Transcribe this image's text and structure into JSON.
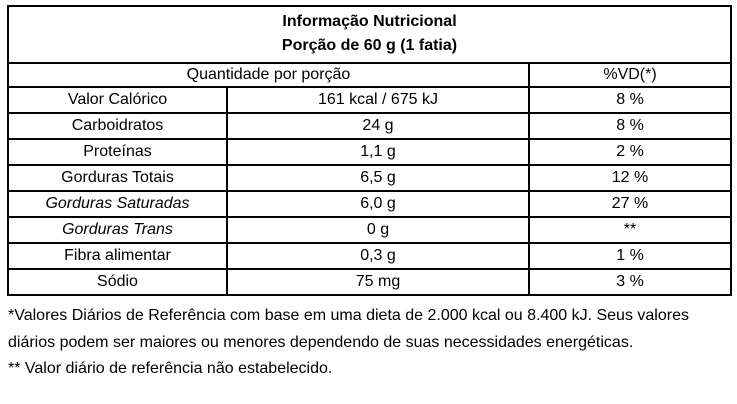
{
  "label": {
    "title": "Informação Nutricional",
    "serving": "Porção de 60 g (1 fatia)"
  },
  "columns": {
    "quantity_header": "Quantidade por porção",
    "dv_header": "%VD(*)"
  },
  "rows": [
    {
      "label": "Valor Calórico",
      "amount": "161 kcal / 675 kJ",
      "dv": "8 %",
      "italic": false
    },
    {
      "label": "Carboidratos",
      "amount": "24 g",
      "dv": "8 %",
      "italic": false
    },
    {
      "label": "Proteínas",
      "amount": "1,1 g",
      "dv": "2 %",
      "italic": false
    },
    {
      "label": "Gorduras Totais",
      "amount": "6,5 g",
      "dv": "12 %",
      "italic": false
    },
    {
      "label": "Gorduras Saturadas",
      "amount": "6,0 g",
      "dv": "27 %",
      "italic": true
    },
    {
      "label": "Gorduras Trans",
      "amount": "0 g",
      "dv": "**",
      "italic": true
    },
    {
      "label": "Fibra alimentar",
      "amount": "0,3 g",
      "dv": "1 %",
      "italic": false
    },
    {
      "label": "Sódio",
      "amount": "75 mg",
      "dv": "3 %",
      "italic": false
    }
  ],
  "footnotes": {
    "daily_values": "*Valores Diários de Referência com base em uma dieta de 2.000 kcal ou 8.400 kJ. Seus valores diários podem ser maiores ou menores dependendo de suas necessidades energéticas.",
    "not_established": "** Valor diário de referência não estabelecido."
  },
  "colors": {
    "border": "#000000",
    "text": "#000000",
    "background": "#ffffff"
  }
}
